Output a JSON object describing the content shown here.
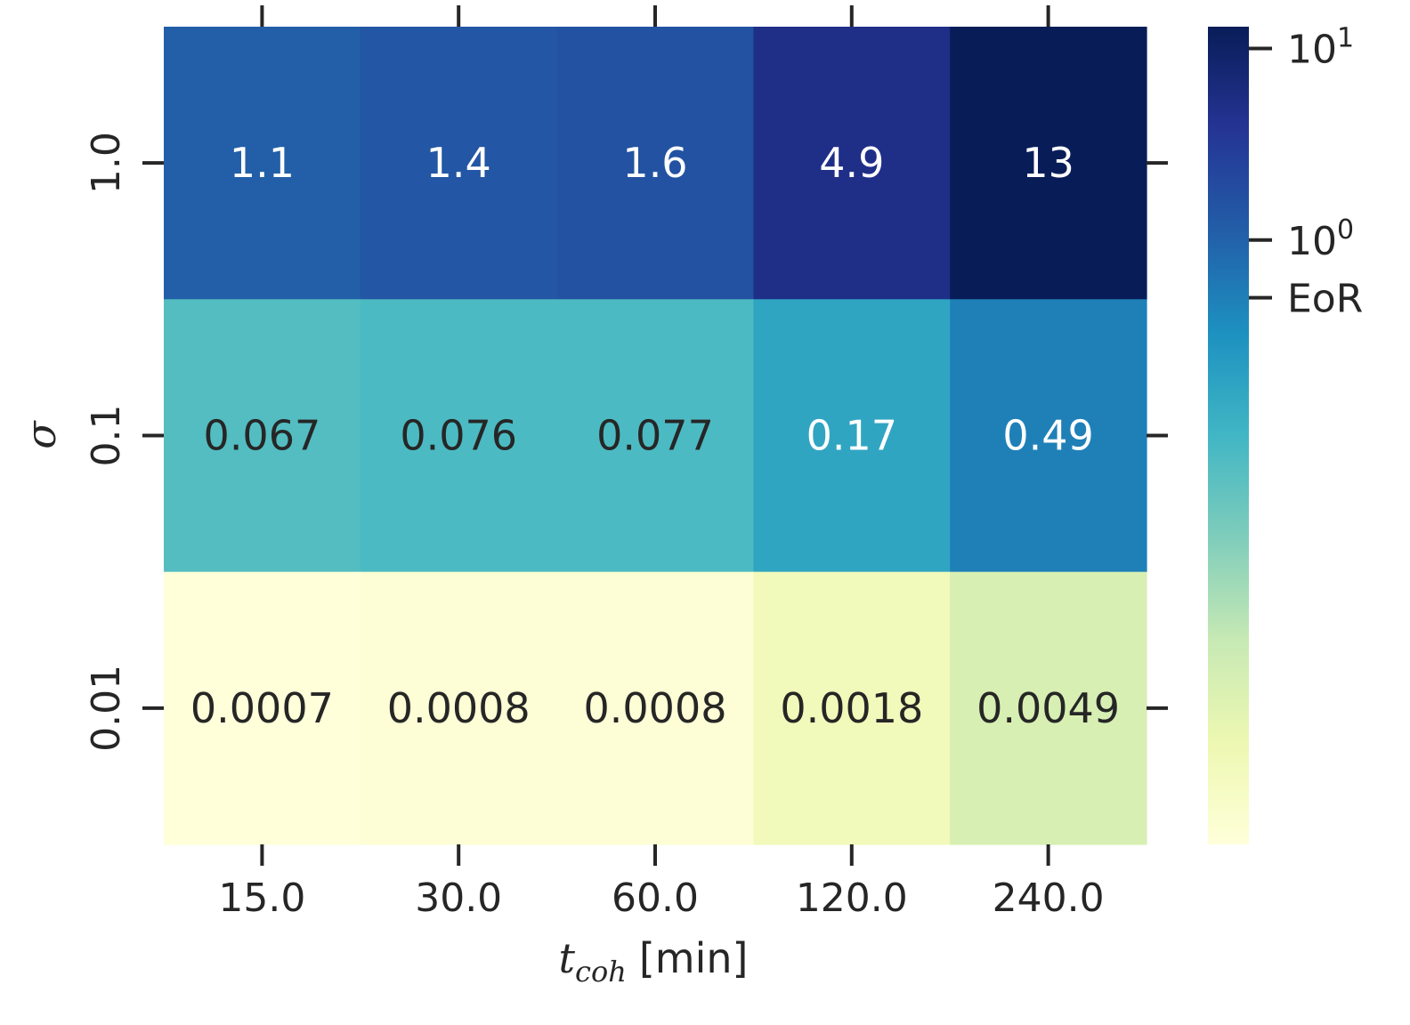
{
  "chart_data": {
    "type": "heatmap",
    "title": "",
    "x_categories": [
      "15.0",
      "30.0",
      "60.0",
      "120.0",
      "240.0"
    ],
    "y_categories": [
      "1.0",
      "0.1",
      "0.01"
    ],
    "values": [
      [
        1.1,
        1.4,
        1.6,
        4.9,
        13
      ],
      [
        0.067,
        0.076,
        0.077,
        0.17,
        0.49
      ],
      [
        0.0007,
        0.0008,
        0.0008,
        0.0018,
        0.0049
      ]
    ],
    "cell_labels": [
      [
        "1.1",
        "1.4",
        "1.6",
        "4.9",
        "13"
      ],
      [
        "0.067",
        "0.076",
        "0.077",
        "0.17",
        "0.49"
      ],
      [
        "0.0007",
        "0.0008",
        "0.0008",
        "0.0018",
        "0.0049"
      ]
    ],
    "xlabel": {
      "symbol": "t",
      "subscript": "coh",
      "unit": "[min]"
    },
    "ylabel": "σ",
    "colorbar": {
      "scale": "log",
      "colormap": "YlGnBu",
      "range": [
        0.0007,
        13
      ],
      "ticks": [
        {
          "value": 10,
          "base": "10",
          "exp": "1"
        },
        {
          "value": 1,
          "base": "10",
          "exp": "0"
        },
        {
          "value": 0.5,
          "label": "EoR"
        }
      ]
    }
  }
}
